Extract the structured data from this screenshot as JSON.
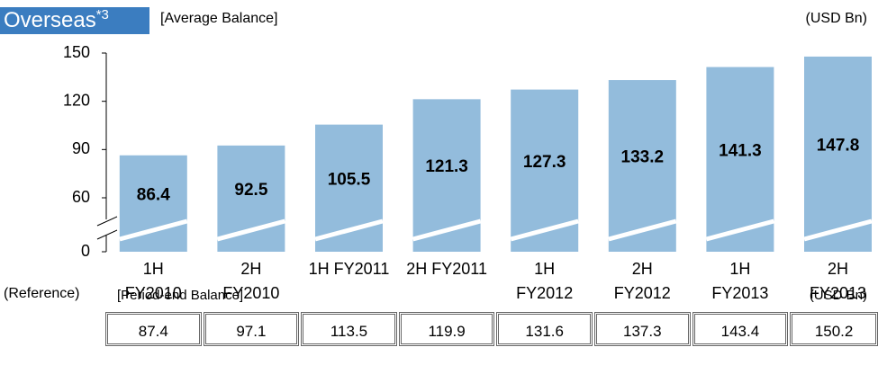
{
  "chart_data": {
    "type": "bar",
    "title": "Overseas",
    "title_superscript": "*3",
    "subtitle": "[Average Balance]",
    "unit": "(USD Bn)",
    "categories": [
      "1H FY2010",
      "2H FY2010",
      "1H FY2011",
      "2H FY2011",
      "1H FY2012",
      "2H FY2012",
      "1H FY2013",
      "2H FY2013"
    ],
    "values": [
      86.4,
      92.5,
      105.5,
      121.3,
      127.3,
      133.2,
      141.3,
      147.8
    ],
    "color": "#93bcdc",
    "ylim": [
      0,
      150
    ],
    "yticks": [
      0,
      60,
      90,
      120,
      150
    ],
    "axis_break": true,
    "reference": {
      "label": "(Reference)",
      "subtitle": "[Period-end Balance]",
      "unit": "(USD Bn)",
      "values": [
        "87.4",
        "97.1",
        "113.5",
        "119.9",
        "131.6",
        "137.3",
        "143.4",
        "150.2"
      ]
    }
  }
}
